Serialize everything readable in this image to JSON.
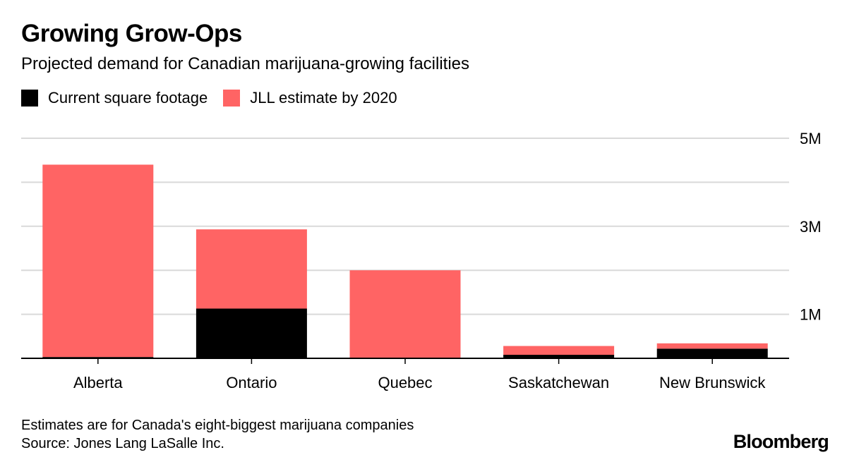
{
  "title": "Growing Grow-Ops",
  "subtitle": "Projected demand for Canadian marijuana-growing facilities",
  "legend": [
    {
      "label": "Current square footage",
      "color": "#000000"
    },
    {
      "label": "JLL estimate by 2020",
      "color": "#ff6464"
    }
  ],
  "footnote": {
    "line1": "Estimates are for Canada's eight-biggest marijuana companies",
    "line2": "Source: Jones Lang LaSalle Inc."
  },
  "brand": "Bloomberg",
  "chart_data": {
    "type": "bar",
    "stacked": true,
    "categories": [
      "Alberta",
      "Ontario",
      "Quebec",
      "Saskatchewan",
      "New Brunswick"
    ],
    "series": [
      {
        "name": "Current square footage",
        "color": "#000000",
        "values": [
          30000,
          1130000,
          0,
          80000,
          220000
        ]
      },
      {
        "name": "JLL estimate by 2020",
        "color": "#ff6464",
        "values": [
          4370000,
          1800000,
          2000000,
          200000,
          120000
        ]
      }
    ],
    "ylim": [
      0,
      5000000
    ],
    "yticks": [
      {
        "value": 1000000,
        "label": "1M"
      },
      {
        "value": 2000000,
        "label": ""
      },
      {
        "value": 3000000,
        "label": "3M"
      },
      {
        "value": 4000000,
        "label": ""
      },
      {
        "value": 5000000,
        "label": "5M"
      }
    ],
    "grid": true,
    "y_axis_side": "right",
    "legend_position": "top-left"
  }
}
